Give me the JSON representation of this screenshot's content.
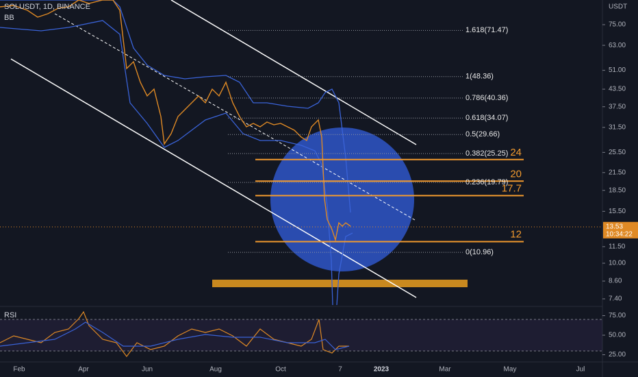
{
  "header": {
    "symbol": "SOLUSDT, 1D, BINANCE",
    "indicator": "BB",
    "currency": "USDT"
  },
  "price_axis": {
    "scale": "log",
    "ticks": [
      {
        "value": 75,
        "label": "75.00"
      },
      {
        "value": 63,
        "label": "63.00"
      },
      {
        "value": 51,
        "label": "51.00"
      },
      {
        "value": 43.5,
        "label": "43.50"
      },
      {
        "value": 37.5,
        "label": "37.50"
      },
      {
        "value": 31.5,
        "label": "31.50"
      },
      {
        "value": 25.5,
        "label": "25.50"
      },
      {
        "value": 21.5,
        "label": "21.50"
      },
      {
        "value": 18.5,
        "label": "18.50"
      },
      {
        "value": 15.5,
        "label": "15.50"
      },
      {
        "value": 11.5,
        "label": "11.50"
      },
      {
        "value": 10,
        "label": "10.00"
      },
      {
        "value": 8.6,
        "label": "8.60"
      },
      {
        "value": 7.4,
        "label": "7.40"
      }
    ],
    "last_price": {
      "value": 13.53,
      "label": "13.53"
    },
    "countdown": "10:34:22"
  },
  "fib_levels": [
    {
      "value": 71.47,
      "label": "1.618(71.47)"
    },
    {
      "value": 48.36,
      "label": "1(48.36)"
    },
    {
      "value": 40.36,
      "label": "0.786(40.36)"
    },
    {
      "value": 34.07,
      "label": "0.618(34.07)"
    },
    {
      "value": 29.66,
      "label": "0.5(29.66)"
    },
    {
      "value": 25.25,
      "label": "0.382(25.25)"
    },
    {
      "value": 19.79,
      "label": "0.236(19.79)"
    },
    {
      "value": 10.96,
      "label": "0(10.96)"
    }
  ],
  "levels": [
    24,
    20,
    17.7,
    12
  ],
  "rsi": {
    "title": "RSI",
    "ticks": [
      {
        "value": 75,
        "label": "75.00"
      },
      {
        "value": 50,
        "label": "50.00"
      },
      {
        "value": 25,
        "label": "25.00"
      }
    ]
  },
  "time_axis": [
    "Feb",
    "Apr",
    "Jun",
    "Aug",
    "Oct",
    "7",
    "2023",
    "Mar",
    "May",
    "Jul"
  ]
}
